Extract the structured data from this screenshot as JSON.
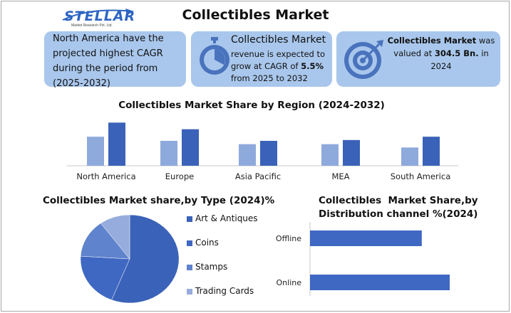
{
  "brand": {
    "logo_text": "STELLAR",
    "logo_subtext": "Market Research Pvt. Ltd."
  },
  "title": "Collectibles Market",
  "cards": {
    "card1": {
      "text": "North America have the projected highest CAGR during the period from (2025-2032)"
    },
    "card2": {
      "head": "Collectibles Market",
      "text_a": "revenue is expected to grow at CAGR of ",
      "cagr": "5.5%",
      "text_b": " from 2025 to 2032",
      "icon": "stopwatch-icon"
    },
    "card3": {
      "head": "Collectibles Market",
      "text_a": " was valued at ",
      "value": "304.5 Bn.",
      "text_b": " in 2024",
      "icon": "target-icon"
    }
  },
  "colors": {
    "dark_blue": "#3a62b8",
    "light_blue": "#7d9bd4",
    "card_bg": "#a9c7ec"
  },
  "chart_data": [
    {
      "type": "bar",
      "title": "Collectibles Market Share by Region (2024-2032)",
      "categories": [
        "North America",
        "Europe",
        "Asia Pacific",
        "MEA",
        "South America"
      ],
      "series": [
        {
          "values": [
            35,
            30,
            26,
            26,
            22
          ],
          "color": "#8ea9db"
        },
        {
          "values": [
            52,
            44,
            30,
            31,
            35
          ],
          "color": "#3a62b8"
        }
      ],
      "ylim": [
        0,
        60
      ],
      "grid": false
    },
    {
      "type": "pie",
      "title": "Collectibles Market share,by Type (2024)%",
      "labels": [
        "Art & Antiques",
        "Coins",
        "Stamps",
        "Trading Cards"
      ],
      "values": [
        56,
        20,
        14,
        10
      ],
      "colors": [
        "#3a62b8",
        "#3f68c2",
        "#5f83cc",
        "#95acdc"
      ],
      "legend": "right"
    },
    {
      "type": "bar",
      "orientation": "horizontal",
      "title": "Collectibles  Market Share,by Distribution channel %(2024)",
      "categories": [
        "Offline",
        "Online"
      ],
      "values": [
        40,
        50
      ],
      "xlim": [
        0,
        50
      ],
      "color": "#3f68c2"
    }
  ]
}
